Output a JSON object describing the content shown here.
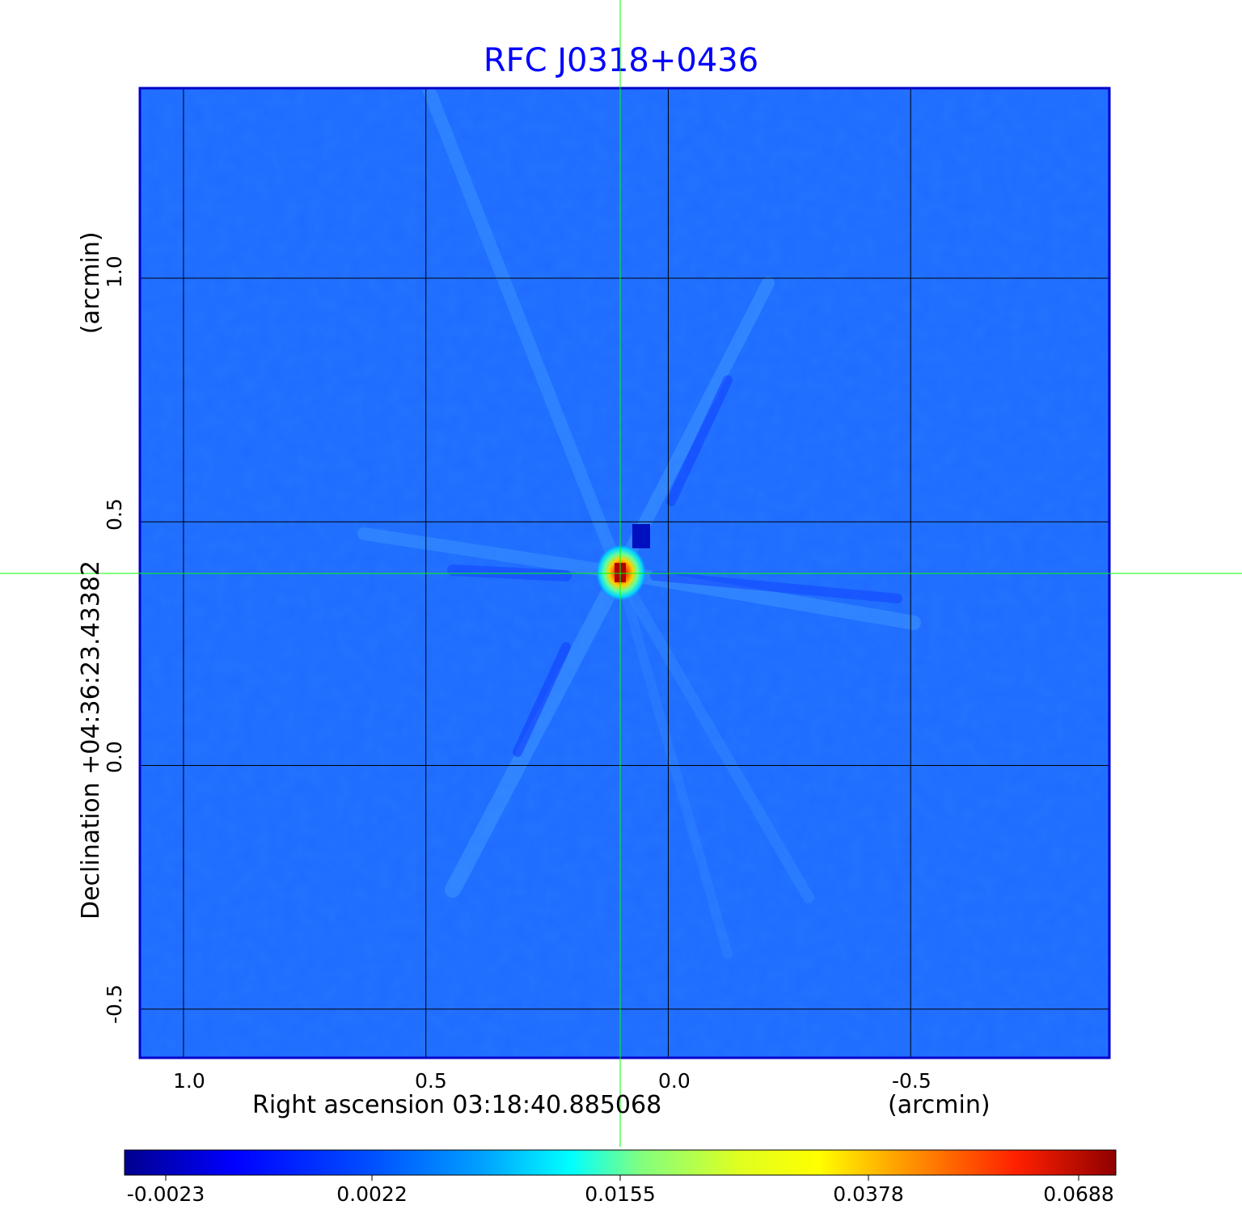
{
  "title": "RFC J0318+0436",
  "x_axis": {
    "label": "Right ascension  03:18:40.885068",
    "unit": "(arcmin)",
    "ticks": [
      "1.0",
      "0.5",
      "0.0",
      "-0.5"
    ],
    "tick_values": [
      1.0,
      0.5,
      0.0,
      -0.5
    ],
    "range": [
      1.09,
      -0.91
    ]
  },
  "y_axis": {
    "label": "Declination  +04:36:23.43382",
    "unit": "(arcmin)",
    "ticks": [
      "1.0",
      "0.5",
      "0.0",
      "-0.5"
    ],
    "tick_values": [
      1.0,
      0.5,
      0.0,
      -0.5
    ],
    "range": [
      -0.6,
      1.39
    ]
  },
  "grid": true,
  "crosshair": {
    "ra_offset": 0.1,
    "dec_offset": 0.39,
    "color": "#00ff00"
  },
  "image": {
    "colormap": "jet",
    "background_color": "#1e6aff",
    "peak_color": "#c00000"
  },
  "colorbar": {
    "ticks": [
      "-0.0023",
      "0.0022",
      "0.0155",
      "0.0378",
      "0.0688"
    ],
    "values": [
      -0.0023,
      0.0022,
      0.0155,
      0.0378,
      0.0688
    ]
  },
  "colors": {
    "title": "#0000ff",
    "frame": "#0000cc",
    "grid": "#000000"
  }
}
